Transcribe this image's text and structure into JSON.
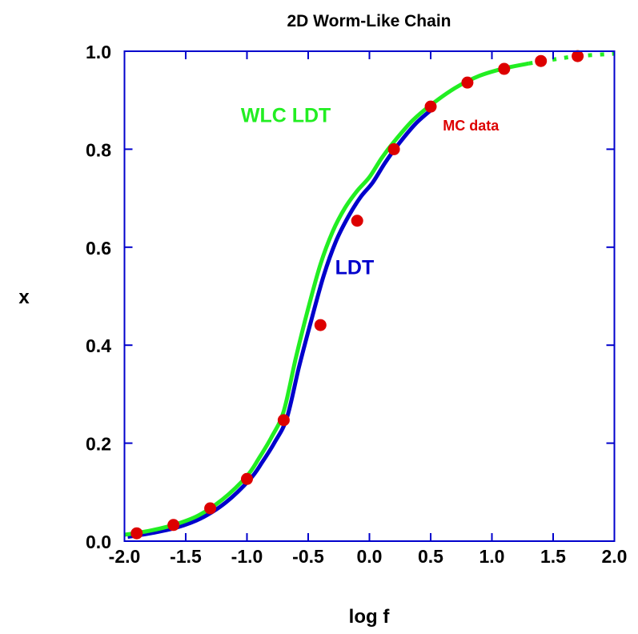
{
  "chart_data": {
    "type": "line",
    "title": "2D Worm-Like Chain",
    "xlabel": "log f",
    "ylabel": "x",
    "xlim": [
      -2.0,
      2.0
    ],
    "ylim": [
      0.0,
      1.0
    ],
    "grid": false,
    "x_ticks": [
      "-2.0",
      "-1.5",
      "-1.0",
      "-0.5",
      "0.0",
      "0.5",
      "1.0",
      "1.5",
      "2.0"
    ],
    "y_ticks": [
      "0.0",
      "0.2",
      "0.4",
      "0.6",
      "0.8",
      "1.0"
    ],
    "legend_position": "inline annotations",
    "series": [
      {
        "name": "LDT",
        "kind": "line",
        "color": "#0000cc",
        "x": [
          -2.0,
          -1.8,
          -1.6,
          -1.4,
          -1.2,
          -1.0,
          -0.9,
          -0.8,
          -0.7,
          -0.6,
          -0.5,
          -0.4,
          -0.3,
          -0.2,
          -0.1,
          0.0,
          0.1,
          0.2,
          0.35,
          0.5
        ],
        "values": [
          0.012,
          0.02,
          0.031,
          0.05,
          0.082,
          0.13,
          0.165,
          0.205,
          0.255,
          0.36,
          0.455,
          0.545,
          0.615,
          0.665,
          0.705,
          0.735,
          0.775,
          0.81,
          0.855,
          0.888
        ]
      },
      {
        "name": "WLC LDT",
        "kind": "line",
        "color": "#22ee22",
        "x": [
          -2.0,
          -1.8,
          -1.6,
          -1.4,
          -1.2,
          -1.0,
          -0.9,
          -0.8,
          -0.7,
          -0.6,
          -0.5,
          -0.4,
          -0.3,
          -0.2,
          -0.1,
          0.0,
          0.1,
          0.2,
          0.35,
          0.5,
          0.7,
          0.9,
          1.1,
          1.3,
          1.5,
          1.7,
          2.0
        ],
        "values": [
          0.013,
          0.021,
          0.033,
          0.052,
          0.085,
          0.133,
          0.17,
          0.212,
          0.265,
          0.375,
          0.475,
          0.565,
          0.632,
          0.68,
          0.715,
          0.743,
          0.782,
          0.815,
          0.858,
          0.89,
          0.925,
          0.95,
          0.965,
          0.975,
          0.983,
          0.99,
          0.995
        ]
      },
      {
        "name": "MC data",
        "kind": "scatter",
        "color": "#dd0000",
        "x": [
          -1.9,
          -1.6,
          -1.3,
          -1.0,
          -0.7,
          -0.4,
          -0.1,
          0.2,
          0.5,
          0.8,
          1.1,
          1.4,
          1.7
        ],
        "values": [
          0.016,
          0.033,
          0.067,
          0.127,
          0.247,
          0.441,
          0.654,
          0.8,
          0.887,
          0.936,
          0.964,
          0.98,
          0.99
        ]
      }
    ],
    "annotations": [
      {
        "text": "WLC LDT",
        "x": -1.05,
        "y": 0.855,
        "color": "#22ee22"
      },
      {
        "text": "LDT",
        "x": -0.28,
        "y": 0.545,
        "color": "#0000cc"
      },
      {
        "text": "MC data",
        "x": 0.6,
        "y": 0.838,
        "color": "#dd0000"
      }
    ]
  },
  "frame": {
    "color": "#0000cc"
  }
}
